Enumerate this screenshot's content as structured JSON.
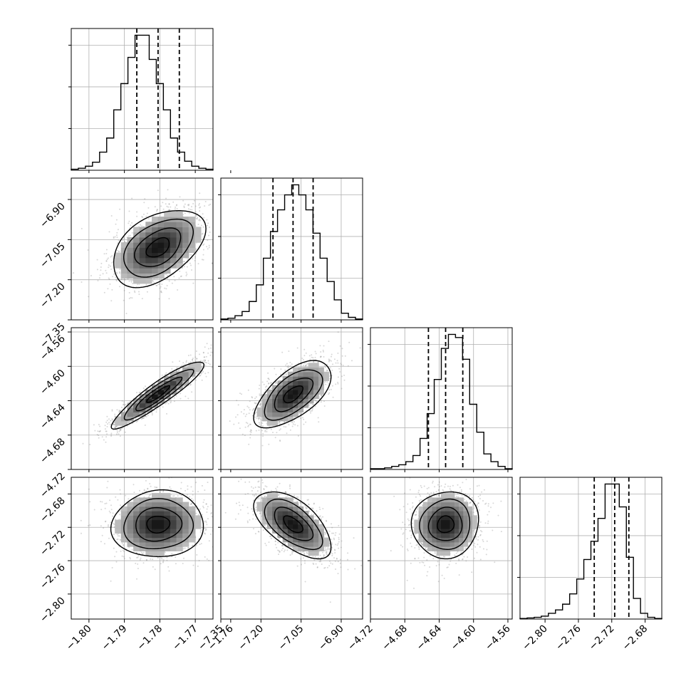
{
  "chart_data": {
    "type": "corner",
    "title": "",
    "parameters": [
      {
        "name": "",
        "range": [
          -1.805,
          -1.765
        ],
        "median": -1.7805,
        "q16": -1.7865,
        "q84": -1.7745
      },
      {
        "name": "",
        "range": [
          -7.35,
          -6.82
        ],
        "median": -7.08,
        "q16": -7.155,
        "q84": -7.005
      },
      {
        "name": "",
        "range": [
          -4.72,
          -4.555
        ],
        "median": -4.6325,
        "q16": -4.6525,
        "q84": -4.6125
      },
      {
        "name": "",
        "range": [
          -2.83,
          -2.66
        ],
        "median": -2.7165,
        "q16": -2.741,
        "q84": -2.6995
      }
    ],
    "x_ticks": [
      {
        "values": [
          -1.8,
          -1.79,
          -1.78,
          -1.77,
          -1.76
        ],
        "labels": [
          "−1.80",
          "−1.79",
          "−1.78",
          "−1.77",
          "−1.76"
        ]
      },
      {
        "values": [
          -7.35,
          -7.2,
          -7.05,
          -6.9
        ],
        "labels": [
          "−7.35",
          "−7.20",
          "−7.05",
          "−6.90"
        ]
      },
      {
        "values": [
          -4.72,
          -4.68,
          -4.64,
          -4.6,
          -4.56
        ],
        "labels": [
          "−4.72",
          "−4.68",
          "−4.64",
          "−4.60",
          "−4.56"
        ]
      },
      {
        "values": [
          -2.8,
          -2.76,
          -2.72,
          -2.68
        ],
        "labels": [
          "−2.80",
          "−2.76",
          "−2.72",
          "−2.68"
        ]
      }
    ],
    "y_ticks": [
      null,
      {
        "values": [
          -6.9,
          -7.05,
          -7.2,
          -7.35
        ],
        "labels": [
          "−6.90",
          "−7.05",
          "−7.20",
          "−7.35"
        ]
      },
      {
        "values": [
          -4.56,
          -4.6,
          -4.64,
          -4.68,
          -4.72
        ],
        "labels": [
          "−4.56",
          "−4.60",
          "−4.64",
          "−4.68",
          "−4.72"
        ]
      },
      {
        "values": [
          -2.68,
          -2.72,
          -2.76,
          -2.8
        ],
        "labels": [
          "−2.68",
          "−2.72",
          "−2.76",
          "−2.80"
        ]
      }
    ],
    "histograms": [
      {
        "counts": [
          1,
          2,
          4,
          8,
          18,
          32,
          60,
          86,
          112,
          134,
          134,
          110,
          86,
          60,
          32,
          18,
          9,
          4,
          2,
          1
        ]
      },
      {
        "counts": [
          1,
          2,
          5,
          10,
          22,
          42,
          74,
          106,
          132,
          150,
          162,
          150,
          132,
          104,
          74,
          46,
          24,
          8,
          3,
          1
        ]
      },
      {
        "counts": [
          1,
          1,
          2,
          4,
          6,
          10,
          18,
          40,
          72,
          116,
          156,
          174,
          170,
          142,
          84,
          48,
          20,
          10,
          4,
          1
        ]
      },
      {
        "counts": [
          1,
          2,
          3,
          5,
          10,
          16,
          26,
          44,
          70,
          104,
          136,
          176,
          236,
          236,
          196,
          108,
          36,
          10,
          3,
          1
        ]
      }
    ],
    "pairs": [
      {
        "row": 1,
        "col": 0,
        "mean": [
          -1.7805,
          -7.08
        ],
        "sd": [
          0.0065,
          0.072
        ],
        "corr": 0.45
      },
      {
        "row": 2,
        "col": 0,
        "mean": [
          -1.7805,
          -4.6325
        ],
        "sd": [
          0.0065,
          0.0195
        ],
        "corr": 0.92
      },
      {
        "row": 2,
        "col": 1,
        "mean": [
          -7.08,
          -4.6325
        ],
        "sd": [
          0.072,
          0.0195
        ],
        "corr": 0.62
      },
      {
        "row": 3,
        "col": 0,
        "mean": [
          -1.7805,
          -2.7165
        ],
        "sd": [
          0.0065,
          0.02
        ],
        "corr": 0.05
      },
      {
        "row": 3,
        "col": 1,
        "mean": [
          -7.08,
          -2.7165
        ],
        "sd": [
          0.072,
          0.02
        ],
        "corr": -0.6
      },
      {
        "row": 3,
        "col": 2,
        "mean": [
          -4.6325,
          -2.7165
        ],
        "sd": [
          0.0195,
          0.02
        ],
        "corr": 0.05
      }
    ],
    "grid": true,
    "quantile_lines": "dashed",
    "colors": {
      "contour": "#000000",
      "points": "#7f7f7f",
      "grid": "#b0b0b0"
    }
  }
}
